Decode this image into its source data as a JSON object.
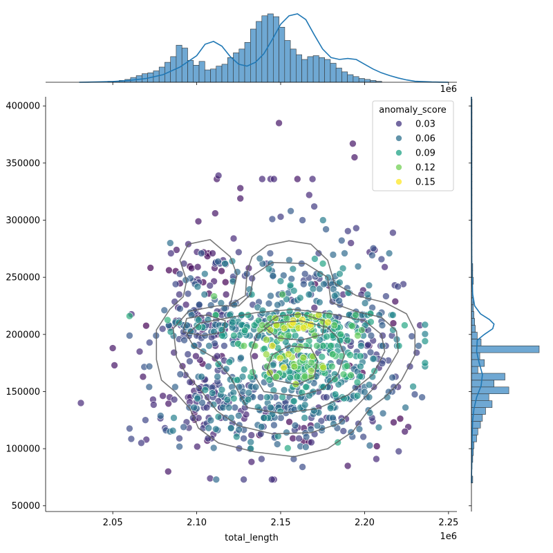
{
  "chart_data": {
    "type": "scatter",
    "subtype": "jointplot",
    "title": "",
    "xlabel": "total_length",
    "ylabel": "",
    "x_offset_text": "1e6",
    "top_offset_text": "1e6",
    "xlim": [
      2010000,
      2255000
    ],
    "ylim": [
      45000,
      408000
    ],
    "xticks": [
      2050000,
      2100000,
      2150000,
      2200000,
      2250000
    ],
    "xtick_labels": [
      "2.05",
      "2.10",
      "2.15",
      "2.20",
      "2.25"
    ],
    "yticks": [
      50000,
      100000,
      150000,
      200000,
      250000,
      300000,
      350000,
      400000
    ],
    "ytick_labels": [
      "50000",
      "100000",
      "150000",
      "200000",
      "250000",
      "300000",
      "350000",
      "400000"
    ],
    "grid": false,
    "legend": {
      "title": "anomaly_score",
      "placement": "top-right",
      "entries": [
        {
          "label": "0.03",
          "value": 0.03,
          "color": "#453781"
        },
        {
          "label": "0.06",
          "value": 0.06,
          "color": "#2d708e"
        },
        {
          "label": "0.09",
          "value": 0.09,
          "color": "#20a386"
        },
        {
          "label": "0.12",
          "value": 0.12,
          "color": "#73d056"
        },
        {
          "label": "0.15",
          "value": 0.15,
          "color": "#fde725"
        }
      ]
    },
    "colormap": [
      "#440154",
      "#482878",
      "#3e4989",
      "#31688e",
      "#26828e",
      "#1f9e89",
      "#35b779",
      "#6ece58",
      "#b5de2b",
      "#fde725"
    ],
    "hue_range": [
      0.0,
      0.17
    ],
    "marginal_color": "#6fa8d3",
    "kde_color": "#1f77b4",
    "contour_color": "#606060",
    "scatter_points": [
      [
        2031000,
        140000,
        0.02
      ],
      [
        2050000,
        188000,
        0.01
      ],
      [
        2051000,
        173000,
        0.01
      ],
      [
        2066000,
        185000,
        0.02
      ],
      [
        2068000,
        163000,
        0.01
      ],
      [
        2083000,
        80000,
        0.01
      ],
      [
        2088000,
        274000,
        0.01
      ],
      [
        2095000,
        279000,
        0.02
      ],
      [
        2101000,
        299000,
        0.01
      ],
      [
        2111000,
        306000,
        0.01
      ],
      [
        2112000,
        336000,
        0.01
      ],
      [
        2113000,
        339000,
        0.02
      ],
      [
        2122000,
        284000,
        0.02
      ],
      [
        2126000,
        328000,
        0.01
      ],
      [
        2126000,
        319000,
        0.01
      ],
      [
        2149000,
        385000,
        0.01
      ],
      [
        2139000,
        336000,
        0.02
      ],
      [
        2144000,
        336000,
        0.02
      ],
      [
        2146000,
        336000,
        0.02
      ],
      [
        2160000,
        336000,
        0.01
      ],
      [
        2169000,
        336000,
        0.02
      ],
      [
        2193000,
        367000,
        0.01
      ],
      [
        2194000,
        355000,
        0.01
      ],
      [
        2195000,
        293000,
        0.03
      ],
      [
        2108000,
        74000,
        0.02
      ],
      [
        2128000,
        73000,
        0.03
      ],
      [
        2146000,
        73000,
        0.02
      ],
      [
        2163000,
        84000,
        0.04
      ],
      [
        2190000,
        85000,
        0.01
      ],
      [
        2207000,
        91000,
        0.02
      ],
      [
        2226000,
        119000,
        0.01
      ],
      [
        2224000,
        115000,
        0.01
      ],
      [
        2233000,
        208000,
        0.02
      ],
      [
        2231000,
        184000,
        0.03
      ],
      [
        2227000,
        172000,
        0.03
      ],
      [
        2070000,
        108000,
        0.02
      ],
      [
        2067000,
        105000,
        0.03
      ],
      [
        2074000,
        143000,
        0.02
      ],
      [
        2212000,
        259000,
        0.02
      ],
      [
        2218000,
        243000,
        0.03
      ],
      [
        2203000,
        272000,
        0.02
      ],
      [
        2206000,
        274000,
        0.02
      ],
      [
        2125000,
        272000,
        0.03
      ],
      [
        2133000,
        249000,
        0.03
      ],
      [
        2177000,
        292000,
        0.05
      ],
      [
        2145000,
        301000,
        0.04
      ],
      [
        2150000,
        303000,
        0.03
      ],
      [
        2156000,
        308000,
        0.05
      ],
      [
        2163000,
        300000,
        0.04
      ],
      [
        2167000,
        322000,
        0.02
      ],
      [
        2170000,
        312000,
        0.03
      ]
    ],
    "scatter_clusters": [
      {
        "center": [
          2155000,
          208000
        ],
        "spread": [
          32000,
          7000
        ],
        "count": 170,
        "score": 0.08
      },
      {
        "center": [
          2162000,
          175000
        ],
        "spread": [
          24000,
          15000
        ],
        "count": 150,
        "score": 0.09
      },
      {
        "center": [
          2155000,
          150000
        ],
        "spread": [
          36000,
          17000
        ],
        "count": 150,
        "score": 0.06
      },
      {
        "center": [
          2150000,
          120000
        ],
        "spread": [
          34000,
          14000
        ],
        "count": 120,
        "score": 0.04
      },
      {
        "center": [
          2157000,
          240000
        ],
        "spread": [
          26000,
          18000
        ],
        "count": 120,
        "score": 0.06
      },
      {
        "center": [
          2102000,
          207000
        ],
        "spread": [
          13000,
          9000
        ],
        "count": 80,
        "score": 0.04
      },
      {
        "center": [
          2103000,
          150000
        ],
        "spread": [
          16000,
          28000
        ],
        "count": 100,
        "score": 0.03
      },
      {
        "center": [
          2198000,
          195000
        ],
        "spread": [
          17000,
          38000
        ],
        "count": 110,
        "score": 0.04
      },
      {
        "center": [
          2103000,
          255000
        ],
        "spread": [
          12000,
          17000
        ],
        "count": 45,
        "score": 0.02
      },
      {
        "center": [
          2160000,
          208000
        ],
        "spread": [
          14000,
          5000
        ],
        "count": 60,
        "score": 0.14
      },
      {
        "center": [
          2160000,
          178000
        ],
        "spread": [
          12000,
          10000
        ],
        "count": 50,
        "score": 0.13
      }
    ],
    "contours": [
      [
        [
          2113000,
          105000
        ],
        [
          2135000,
          97000
        ],
        [
          2158000,
          93000
        ],
        [
          2178000,
          100000
        ],
        [
          2193000,
          115000
        ],
        [
          2203000,
          135000
        ],
        [
          2212000,
          145000
        ],
        [
          2222000,
          160000
        ],
        [
          2230000,
          182000
        ],
        [
          2230000,
          203000
        ],
        [
          2225000,
          218000
        ],
        [
          2212000,
          228000
        ],
        [
          2195000,
          234000
        ],
        [
          2182000,
          245000
        ],
        [
          2178000,
          265000
        ],
        [
          2168000,
          279000
        ],
        [
          2155000,
          282000
        ],
        [
          2142000,
          278000
        ],
        [
          2133000,
          268000
        ],
        [
          2130000,
          255000
        ],
        [
          2129000,
          234000
        ],
        [
          2120000,
          226000
        ],
        [
          2124000,
          252000
        ],
        [
          2120000,
          268000
        ],
        [
          2108000,
          283000
        ],
        [
          2095000,
          279000
        ],
        [
          2090000,
          265000
        ],
        [
          2094000,
          247000
        ],
        [
          2092000,
          233000
        ],
        [
          2084000,
          222000
        ],
        [
          2076000,
          204000
        ],
        [
          2076000,
          178000
        ],
        [
          2079000,
          160000
        ],
        [
          2087000,
          150000
        ],
        [
          2096000,
          135000
        ],
        [
          2101000,
          118000
        ]
      ],
      [
        [
          2125000,
          120000
        ],
        [
          2145000,
          113000
        ],
        [
          2168000,
          114000
        ],
        [
          2185000,
          122000
        ],
        [
          2197000,
          140000
        ],
        [
          2210000,
          160000
        ],
        [
          2220000,
          185000
        ],
        [
          2219000,
          203000
        ],
        [
          2210000,
          215000
        ],
        [
          2195000,
          220000
        ],
        [
          2180000,
          228000
        ],
        [
          2178000,
          250000
        ],
        [
          2165000,
          262000
        ],
        [
          2145000,
          263000
        ],
        [
          2134000,
          252000
        ],
        [
          2132000,
          235000
        ],
        [
          2125000,
          225000
        ],
        [
          2112000,
          225000
        ],
        [
          2095000,
          220000
        ],
        [
          2086000,
          205000
        ],
        [
          2088000,
          180000
        ],
        [
          2094000,
          165000
        ],
        [
          2103000,
          150000
        ],
        [
          2112000,
          133000
        ]
      ],
      [
        [
          2130000,
          136000
        ],
        [
          2150000,
          131000
        ],
        [
          2172000,
          135000
        ],
        [
          2190000,
          147000
        ],
        [
          2205000,
          165000
        ],
        [
          2212000,
          185000
        ],
        [
          2210000,
          200000
        ],
        [
          2200000,
          212000
        ],
        [
          2180000,
          218000
        ],
        [
          2158000,
          222000
        ],
        [
          2135000,
          219000
        ],
        [
          2117000,
          214000
        ],
        [
          2102000,
          210000
        ],
        [
          2094000,
          200000
        ],
        [
          2098000,
          190000
        ],
        [
          2110000,
          180000
        ],
        [
          2120000,
          163000
        ]
      ],
      [
        [
          2140000,
          150000
        ],
        [
          2160000,
          146000
        ],
        [
          2175000,
          152000
        ],
        [
          2184000,
          165000
        ],
        [
          2188000,
          182000
        ],
        [
          2184000,
          197000
        ],
        [
          2178000,
          206000
        ],
        [
          2162000,
          212000
        ],
        [
          2146000,
          210000
        ],
        [
          2136000,
          200000
        ],
        [
          2132000,
          183000
        ],
        [
          2134000,
          165000
        ]
      ],
      [
        [
          2148000,
          197000
        ],
        [
          2162000,
          195000
        ],
        [
          2175000,
          200000
        ],
        [
          2176000,
          212000
        ],
        [
          2162000,
          218000
        ],
        [
          2148000,
          216000
        ],
        [
          2140000,
          207000
        ]
      ],
      [
        [
          2146000,
          160000
        ],
        [
          2160000,
          156000
        ],
        [
          2170000,
          163000
        ],
        [
          2172000,
          177000
        ],
        [
          2168000,
          188000
        ],
        [
          2155000,
          190000
        ],
        [
          2145000,
          182000
        ],
        [
          2142000,
          170000
        ]
      ],
      [
        [
          2092000,
          202000
        ],
        [
          2104000,
          199000
        ],
        [
          2116000,
          202000
        ],
        [
          2117000,
          212000
        ],
        [
          2106000,
          217000
        ],
        [
          2094000,
          214000
        ]
      ]
    ],
    "x_marginal": {
      "bin_start": 2030000,
      "bin_width": 3400,
      "counts": [
        0,
        0,
        0,
        0,
        0,
        1,
        1,
        2,
        3,
        5,
        7,
        9,
        10,
        12,
        16,
        21,
        27,
        39,
        36,
        23,
        18,
        22,
        13,
        14,
        17,
        19,
        26,
        31,
        35,
        42,
        56,
        64,
        70,
        72,
        69,
        58,
        44,
        35,
        29,
        24,
        27,
        28,
        26,
        24,
        20,
        15,
        11,
        8,
        6,
        4,
        3,
        2,
        1,
        0,
        0,
        0,
        0,
        0,
        0,
        0
      ],
      "kde": [
        [
          2030000,
          0
        ],
        [
          2040000,
          0.3
        ],
        [
          2050000,
          0.8
        ],
        [
          2060000,
          2
        ],
        [
          2070000,
          4
        ],
        [
          2080000,
          8
        ],
        [
          2090000,
          16
        ],
        [
          2100000,
          28
        ],
        [
          2105000,
          40
        ],
        [
          2110000,
          43
        ],
        [
          2115000,
          38
        ],
        [
          2120000,
          27
        ],
        [
          2125000,
          19
        ],
        [
          2130000,
          17
        ],
        [
          2135000,
          21
        ],
        [
          2140000,
          30
        ],
        [
          2145000,
          45
        ],
        [
          2150000,
          61
        ],
        [
          2155000,
          70
        ],
        [
          2160000,
          72
        ],
        [
          2165000,
          66
        ],
        [
          2170000,
          50
        ],
        [
          2175000,
          35
        ],
        [
          2180000,
          26
        ],
        [
          2185000,
          24
        ],
        [
          2190000,
          25
        ],
        [
          2195000,
          24
        ],
        [
          2200000,
          19
        ],
        [
          2205000,
          14
        ],
        [
          2210000,
          10
        ],
        [
          2215000,
          7
        ],
        [
          2220000,
          4.5
        ],
        [
          2225000,
          2.5
        ],
        [
          2230000,
          1
        ],
        [
          2240000,
          0.3
        ],
        [
          2250000,
          0
        ]
      ]
    },
    "y_marginal": {
      "bin_start": 70000,
      "bin_width": 6000,
      "counts": [
        2,
        0,
        1,
        2,
        3,
        4,
        8,
        10,
        14,
        17,
        22,
        32,
        27,
        58,
        35,
        52,
        10,
        20,
        13,
        105,
        15,
        9,
        6,
        5,
        4,
        3,
        3,
        2,
        2,
        3,
        2,
        2,
        1,
        1,
        1,
        1,
        1,
        1,
        1,
        1,
        1,
        1,
        1,
        1,
        1,
        1,
        1,
        1,
        1,
        1,
        1,
        1,
        1,
        1,
        1,
        1
      ],
      "kde": [
        [
          70000,
          0
        ],
        [
          90000,
          0.5
        ],
        [
          110000,
          1
        ],
        [
          125000,
          2
        ],
        [
          135000,
          4
        ],
        [
          145000,
          8
        ],
        [
          155000,
          15
        ],
        [
          165000,
          17
        ],
        [
          175000,
          12
        ],
        [
          185000,
          8
        ],
        [
          195000,
          9
        ],
        [
          200000,
          20
        ],
        [
          205000,
          33
        ],
        [
          209000,
          35
        ],
        [
          213000,
          28
        ],
        [
          218000,
          14
        ],
        [
          225000,
          5
        ],
        [
          235000,
          2
        ],
        [
          250000,
          0.8
        ],
        [
          270000,
          0.3
        ],
        [
          300000,
          0.1
        ],
        [
          330000,
          0
        ],
        [
          408000,
          0
        ]
      ]
    }
  }
}
